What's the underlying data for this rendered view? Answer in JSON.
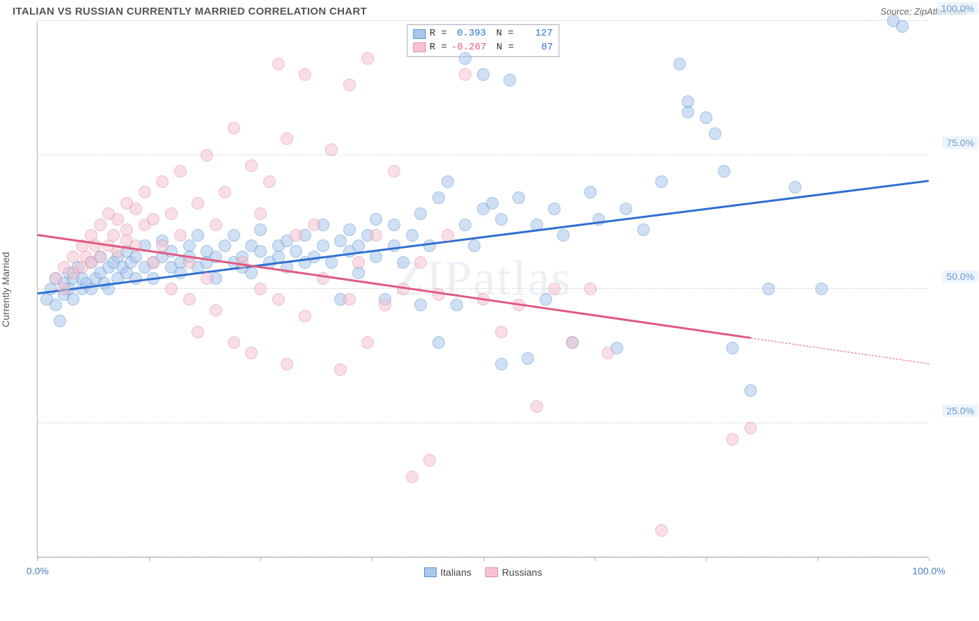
{
  "title": "ITALIAN VS RUSSIAN CURRENTLY MARRIED CORRELATION CHART",
  "source": "Source: ZipAtlas.com",
  "watermark": "ZIPatlas",
  "yaxis_title": "Currently Married",
  "chart": {
    "type": "scatter",
    "xlim": [
      0,
      100
    ],
    "ylim": [
      0,
      100
    ],
    "x_ticks": [
      0,
      12.5,
      25,
      37.5,
      50,
      62.5,
      75,
      87.5,
      100
    ],
    "x_tick_labels": {
      "0": "0.0%",
      "100": "100.0%"
    },
    "y_gridlines": [
      0,
      25,
      50,
      75,
      100
    ],
    "y_tick_labels": {
      "25": "25.0%",
      "50": "50.0%",
      "75": "75.0%",
      "100": "100.0%"
    },
    "background_color": "#ffffff",
    "grid_color": "#d8d8d8",
    "axis_color": "#b0b0b0",
    "ylabel_color": "#6b9bd1",
    "xlabel_color": "#4a7bc0",
    "marker_radius": 9,
    "marker_opacity": 0.55,
    "series": [
      {
        "name": "Italians",
        "fill": "#a8c8ec",
        "stroke": "#5a8fd0",
        "trend_color": "#2f6fd0",
        "trend": {
          "x1": 0,
          "y1": 49,
          "x2": 100,
          "y2": 70,
          "dash_from_x": null
        },
        "points": [
          [
            1,
            48
          ],
          [
            1.5,
            50
          ],
          [
            2,
            47
          ],
          [
            2,
            52
          ],
          [
            2.5,
            44
          ],
          [
            3,
            49
          ],
          [
            3,
            51
          ],
          [
            3.5,
            50
          ],
          [
            3.5,
            53
          ],
          [
            4,
            48
          ],
          [
            4,
            52
          ],
          [
            4.5,
            54
          ],
          [
            5,
            50
          ],
          [
            5,
            52
          ],
          [
            5.5,
            51
          ],
          [
            6,
            50
          ],
          [
            6,
            55
          ],
          [
            6.5,
            52
          ],
          [
            7,
            53
          ],
          [
            7,
            56
          ],
          [
            7.5,
            51
          ],
          [
            8,
            54
          ],
          [
            8,
            50
          ],
          [
            8.5,
            55
          ],
          [
            9,
            52
          ],
          [
            9,
            56
          ],
          [
            9.5,
            54
          ],
          [
            10,
            53
          ],
          [
            10,
            57
          ],
          [
            10.5,
            55
          ],
          [
            11,
            52
          ],
          [
            11,
            56
          ],
          [
            12,
            54
          ],
          [
            12,
            58
          ],
          [
            13,
            55
          ],
          [
            13,
            52
          ],
          [
            14,
            56
          ],
          [
            14,
            59
          ],
          [
            15,
            54
          ],
          [
            15,
            57
          ],
          [
            16,
            55
          ],
          [
            16,
            53
          ],
          [
            17,
            58
          ],
          [
            17,
            56
          ],
          [
            18,
            54
          ],
          [
            18,
            60
          ],
          [
            19,
            55
          ],
          [
            19,
            57
          ],
          [
            20,
            56
          ],
          [
            20,
            52
          ],
          [
            21,
            58
          ],
          [
            22,
            55
          ],
          [
            22,
            60
          ],
          [
            23,
            56
          ],
          [
            23,
            54
          ],
          [
            24,
            58
          ],
          [
            24,
            53
          ],
          [
            25,
            57
          ],
          [
            25,
            61
          ],
          [
            26,
            55
          ],
          [
            27,
            58
          ],
          [
            27,
            56
          ],
          [
            28,
            59
          ],
          [
            28,
            54
          ],
          [
            29,
            57
          ],
          [
            30,
            60
          ],
          [
            30,
            55
          ],
          [
            31,
            56
          ],
          [
            32,
            58
          ],
          [
            32,
            62
          ],
          [
            33,
            55
          ],
          [
            34,
            59
          ],
          [
            34,
            48
          ],
          [
            35,
            57
          ],
          [
            35,
            61
          ],
          [
            36,
            53
          ],
          [
            36,
            58
          ],
          [
            37,
            60
          ],
          [
            38,
            56
          ],
          [
            38,
            63
          ],
          [
            39,
            48
          ],
          [
            40,
            58
          ],
          [
            40,
            62
          ],
          [
            41,
            55
          ],
          [
            42,
            60
          ],
          [
            43,
            47
          ],
          [
            43,
            64
          ],
          [
            44,
            58
          ],
          [
            45,
            67
          ],
          [
            45,
            40
          ],
          [
            46,
            70
          ],
          [
            47,
            47
          ],
          [
            48,
            62
          ],
          [
            48,
            93
          ],
          [
            49,
            58
          ],
          [
            50,
            90
          ],
          [
            50,
            65
          ],
          [
            51,
            66
          ],
          [
            52,
            36
          ],
          [
            52,
            63
          ],
          [
            53,
            89
          ],
          [
            54,
            67
          ],
          [
            55,
            37
          ],
          [
            56,
            62
          ],
          [
            57,
            48
          ],
          [
            58,
            65
          ],
          [
            59,
            60
          ],
          [
            60,
            40
          ],
          [
            62,
            68
          ],
          [
            63,
            63
          ],
          [
            65,
            39
          ],
          [
            66,
            65
          ],
          [
            68,
            61
          ],
          [
            70,
            70
          ],
          [
            72,
            92
          ],
          [
            73,
            83
          ],
          [
            73,
            85
          ],
          [
            75,
            82
          ],
          [
            76,
            79
          ],
          [
            77,
            72
          ],
          [
            78,
            39
          ],
          [
            80,
            31
          ],
          [
            82,
            50
          ],
          [
            85,
            69
          ],
          [
            88,
            50
          ],
          [
            96,
            100
          ],
          [
            97,
            99
          ]
        ]
      },
      {
        "name": "Russians",
        "fill": "#f5c4d0",
        "stroke": "#e08aa0",
        "trend_color": "#e05a80",
        "trend": {
          "x1": 0,
          "y1": 60,
          "x2": 100,
          "y2": 36,
          "dash_from_x": 80
        },
        "points": [
          [
            2,
            52
          ],
          [
            3,
            54
          ],
          [
            3,
            50
          ],
          [
            4,
            56
          ],
          [
            4,
            53
          ],
          [
            5,
            58
          ],
          [
            5,
            54
          ],
          [
            5.5,
            56
          ],
          [
            6,
            60
          ],
          [
            6,
            55
          ],
          [
            6.5,
            58
          ],
          [
            7,
            62
          ],
          [
            7,
            56
          ],
          [
            8,
            64
          ],
          [
            8,
            58
          ],
          [
            8.5,
            60
          ],
          [
            9,
            63
          ],
          [
            9,
            57
          ],
          [
            10,
            66
          ],
          [
            10,
            59
          ],
          [
            10,
            61
          ],
          [
            11,
            65
          ],
          [
            11,
            58
          ],
          [
            12,
            62
          ],
          [
            12,
            68
          ],
          [
            13,
            55
          ],
          [
            13,
            63
          ],
          [
            14,
            70
          ],
          [
            14,
            58
          ],
          [
            15,
            64
          ],
          [
            15,
            50
          ],
          [
            16,
            72
          ],
          [
            16,
            60
          ],
          [
            17,
            55
          ],
          [
            17,
            48
          ],
          [
            18,
            66
          ],
          [
            18,
            42
          ],
          [
            19,
            75
          ],
          [
            19,
            52
          ],
          [
            20,
            62
          ],
          [
            20,
            46
          ],
          [
            21,
            68
          ],
          [
            22,
            40
          ],
          [
            22,
            80
          ],
          [
            23,
            55
          ],
          [
            24,
            73
          ],
          [
            24,
            38
          ],
          [
            25,
            64
          ],
          [
            25,
            50
          ],
          [
            26,
            70
          ],
          [
            27,
            92
          ],
          [
            27,
            48
          ],
          [
            28,
            78
          ],
          [
            28,
            36
          ],
          [
            29,
            60
          ],
          [
            30,
            90
          ],
          [
            30,
            45
          ],
          [
            31,
            62
          ],
          [
            32,
            52
          ],
          [
            33,
            76
          ],
          [
            34,
            35
          ],
          [
            35,
            88
          ],
          [
            35,
            48
          ],
          [
            36,
            55
          ],
          [
            37,
            93
          ],
          [
            37,
            40
          ],
          [
            38,
            60
          ],
          [
            39,
            47
          ],
          [
            40,
            72
          ],
          [
            41,
            50
          ],
          [
            42,
            15
          ],
          [
            43,
            55
          ],
          [
            44,
            18
          ],
          [
            45,
            49
          ],
          [
            46,
            60
          ],
          [
            48,
            90
          ],
          [
            50,
            48
          ],
          [
            52,
            42
          ],
          [
            54,
            47
          ],
          [
            56,
            28
          ],
          [
            58,
            50
          ],
          [
            60,
            40
          ],
          [
            62,
            50
          ],
          [
            64,
            38
          ],
          [
            70,
            5
          ],
          [
            78,
            22
          ],
          [
            80,
            24
          ]
        ]
      }
    ]
  },
  "stats": [
    {
      "swatch_fill": "#a8c8ec",
      "swatch_stroke": "#5a8fd0",
      "r": "0.393",
      "r_color": "#2f6fd0",
      "n": "127",
      "n_color": "#2f6fd0"
    },
    {
      "swatch_fill": "#f5c4d0",
      "swatch_stroke": "#e08aa0",
      "r": "-0.267",
      "r_color": "#e05a80",
      "n": "87",
      "n_color": "#2f6fd0"
    }
  ],
  "legend": [
    {
      "label": "Italians",
      "fill": "#a8c8ec",
      "stroke": "#5a8fd0"
    },
    {
      "label": "Russians",
      "fill": "#f5c4d0",
      "stroke": "#e08aa0"
    }
  ]
}
